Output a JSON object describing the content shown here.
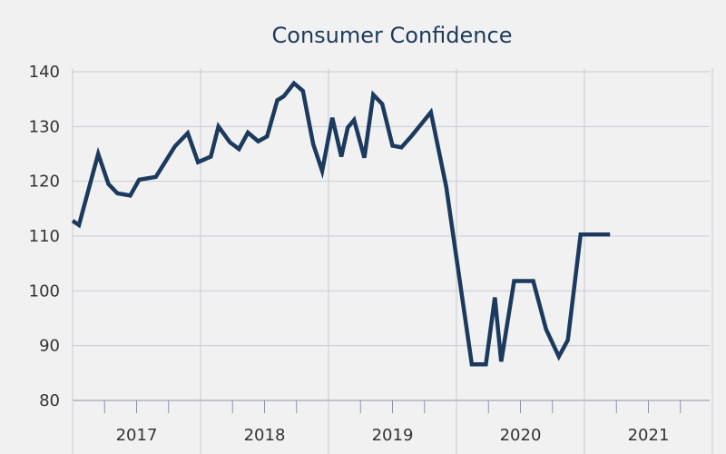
{
  "chart_data": {
    "type": "line",
    "title": "Consumer Confidence",
    "xlabel": "",
    "ylabel": "",
    "ylim": [
      80,
      140
    ],
    "yticks": [
      80,
      90,
      100,
      110,
      120,
      130,
      140
    ],
    "year_labels": [
      "2017",
      "2018",
      "2019",
      "2020",
      "2021"
    ],
    "x_start": 2017.0,
    "x_end": 2022.0,
    "line_color": "#1b3a5e",
    "series": [
      {
        "name": "Consumer Confidence",
        "x": [
          2017.0,
          2017.05,
          2017.2,
          2017.28,
          2017.35,
          2017.45,
          2017.52,
          2017.65,
          2017.8,
          2017.9,
          2017.98,
          2018.08,
          2018.14,
          2018.23,
          2018.3,
          2018.37,
          2018.45,
          2018.52,
          2018.6,
          2018.65,
          2018.73,
          2018.8,
          2018.88,
          2018.95,
          2019.03,
          2019.1,
          2019.15,
          2019.2,
          2019.28,
          2019.35,
          2019.42,
          2019.5,
          2019.57,
          2019.65,
          2019.8,
          2019.92,
          2020.12,
          2020.23,
          2020.3,
          2020.35,
          2020.45,
          2020.6,
          2020.7,
          2020.8,
          2020.87,
          2020.97,
          2021.13,
          2021.2
        ],
        "values": [
          112.8,
          112.0,
          125.0,
          119.5,
          117.8,
          117.4,
          120.3,
          120.8,
          126.4,
          128.8,
          123.5,
          124.5,
          130.0,
          127.1,
          125.9,
          128.9,
          127.3,
          128.2,
          134.8,
          135.5,
          137.9,
          136.5,
          126.8,
          121.9,
          131.6,
          124.5,
          129.8,
          131.2,
          124.3,
          135.8,
          134.1,
          126.5,
          126.2,
          128.3,
          132.6,
          119.0,
          86.6,
          86.6,
          98.8,
          87.1,
          101.8,
          101.8,
          93.0,
          88.0,
          91.0,
          110.3,
          110.3,
          110.3
        ]
      }
    ]
  }
}
